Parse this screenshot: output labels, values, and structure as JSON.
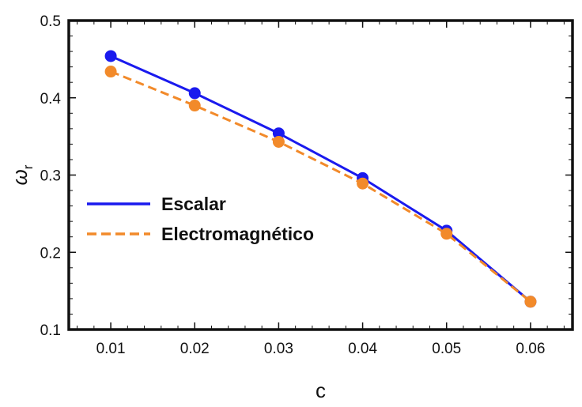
{
  "chart_data": {
    "type": "line",
    "title": "",
    "xlabel": "c",
    "ylabel_main": "ω",
    "ylabel_sub": "r",
    "x": [
      0.01,
      0.02,
      0.03,
      0.04,
      0.05,
      0.06
    ],
    "xlim": [
      0.005,
      0.065
    ],
    "ylim": [
      0.1,
      0.5
    ],
    "x_ticks": [
      "0.01",
      "0.02",
      "0.03",
      "0.04",
      "0.05",
      "0.06"
    ],
    "y_ticks": [
      "0.1",
      "0.2",
      "0.3",
      "0.4",
      "0.5"
    ],
    "grid": false,
    "legend_position": "center-left",
    "series": [
      {
        "name": "Escalar",
        "values": [
          0.454,
          0.406,
          0.354,
          0.296,
          0.228,
          0.136
        ],
        "color": "#1a1aee",
        "style": "solid",
        "markers": true
      },
      {
        "name": "Electromagnético",
        "values": [
          0.434,
          0.39,
          0.343,
          0.289,
          0.224,
          0.136
        ],
        "color": "#f28a2a",
        "style": "dashed",
        "markers": true
      }
    ]
  }
}
